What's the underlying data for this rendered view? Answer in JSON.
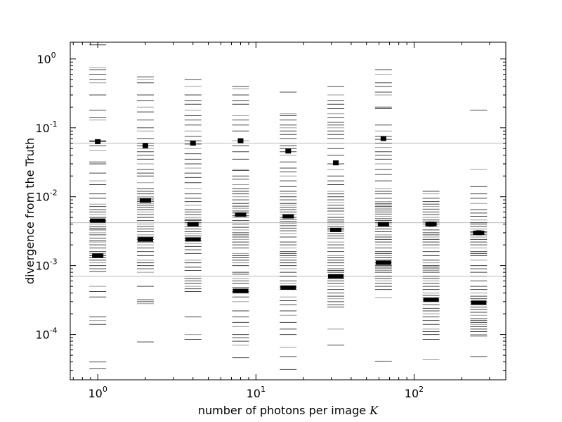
{
  "chart_data": {
    "type": "scatter",
    "title": "",
    "xlabel": "number of photons per image",
    "xlabel_symbol": "K",
    "ylabel": "divergence from the Truth",
    "xscale": "log",
    "yscale": "log",
    "xlim": [
      0.67,
      380
    ],
    "ylim": [
      2.2e-05,
      1.75
    ],
    "x_ticks": [
      {
        "value": 1,
        "base": "10",
        "exp": "0"
      },
      {
        "value": 10,
        "base": "10",
        "exp": "1"
      },
      {
        "value": 100,
        "base": "10",
        "exp": "2"
      }
    ],
    "y_ticks": [
      {
        "value": 1,
        "base": "10",
        "exp": "0"
      },
      {
        "value": 0.1,
        "base": "10",
        "exp": "-1"
      },
      {
        "value": 0.01,
        "base": "10",
        "exp": "-2"
      },
      {
        "value": 0.001,
        "base": "10",
        "exp": "-3"
      },
      {
        "value": 0.0001,
        "base": "10",
        "exp": "-4"
      }
    ],
    "reference_lines": [
      0.06,
      0.0042,
      0.0007
    ],
    "reference_line_color": "#bbbbbb",
    "marker_color": "#000000",
    "series": [
      {
        "x": 1,
        "values": [
          1.6,
          0.75,
          0.7,
          0.6,
          0.5,
          0.45,
          0.3,
          0.18,
          0.14,
          0.13,
          0.065,
          0.063,
          0.055,
          0.047,
          0.032,
          0.03,
          0.022,
          0.017,
          0.015,
          0.011,
          0.0095,
          0.0078,
          0.0072,
          0.0065,
          0.006,
          0.0055,
          0.005,
          0.0045,
          0.0043,
          0.004,
          0.0037,
          0.0035,
          0.0033,
          0.003,
          0.0028,
          0.0025,
          0.0023,
          0.0022,
          0.002,
          0.0018,
          0.0016,
          0.0015,
          0.0014,
          0.0013,
          0.0012,
          0.0011,
          0.001,
          0.0009,
          0.00082,
          0.0005,
          0.00042,
          0.00035,
          0.00018,
          0.00016,
          0.00014,
          4e-05,
          3.2e-05
        ],
        "median": 0.0045,
        "lower": 0.0014,
        "upper": 0.063
      },
      {
        "x": 2,
        "values": [
          0.55,
          0.5,
          0.45,
          0.3,
          0.25,
          0.2,
          0.17,
          0.13,
          0.1,
          0.09,
          0.07,
          0.06,
          0.055,
          0.05,
          0.045,
          0.04,
          0.035,
          0.03,
          0.025,
          0.022,
          0.02,
          0.016,
          0.013,
          0.012,
          0.011,
          0.01,
          0.0095,
          0.009,
          0.0085,
          0.008,
          0.0075,
          0.007,
          0.0065,
          0.006,
          0.0055,
          0.005,
          0.0045,
          0.004,
          0.0037,
          0.0034,
          0.0031,
          0.0028,
          0.0026,
          0.0024,
          0.0022,
          0.002,
          0.0018,
          0.0016,
          0.0014,
          0.0012,
          0.0011,
          0.001,
          0.0009,
          0.0008,
          0.0005,
          0.00032,
          0.0003,
          0.00028,
          7.8e-05
        ],
        "median": 0.0024,
        "lower": 0.0088,
        "upper": 0.055
      },
      {
        "x": 4,
        "values": [
          0.5,
          0.4,
          0.3,
          0.25,
          0.22,
          0.18,
          0.15,
          0.13,
          0.11,
          0.09,
          0.075,
          0.065,
          0.058,
          0.05,
          0.042,
          0.035,
          0.03,
          0.026,
          0.022,
          0.019,
          0.016,
          0.013,
          0.011,
          0.0095,
          0.0085,
          0.0075,
          0.0065,
          0.006,
          0.0055,
          0.005,
          0.0047,
          0.0045,
          0.0042,
          0.004,
          0.0037,
          0.0034,
          0.0031,
          0.0029,
          0.0027,
          0.0025,
          0.0023,
          0.0021,
          0.0019,
          0.0017,
          0.0015,
          0.0012,
          0.0011,
          0.00095,
          0.00085,
          0.0007,
          0.00065,
          0.0006,
          0.00055,
          0.0005,
          0.00046,
          0.00042,
          0.00018,
          0.0001,
          8.5e-05
        ],
        "median": 0.0024,
        "lower": 0.004,
        "upper": 0.06
      },
      {
        "x": 8,
        "values": [
          0.4,
          0.37,
          0.3,
          0.25,
          0.22,
          0.15,
          0.13,
          0.11,
          0.09,
          0.065,
          0.055,
          0.045,
          0.035,
          0.025,
          0.024,
          0.02,
          0.018,
          0.015,
          0.013,
          0.012,
          0.011,
          0.01,
          0.009,
          0.008,
          0.0073,
          0.0068,
          0.0062,
          0.0058,
          0.0053,
          0.005,
          0.0045,
          0.004,
          0.0036,
          0.0033,
          0.003,
          0.0028,
          0.0026,
          0.0024,
          0.0022,
          0.002,
          0.0018,
          0.0015,
          0.0014,
          0.0013,
          0.0012,
          0.0011,
          0.001,
          0.0008,
          0.00075,
          0.00065,
          0.0006,
          0.00055,
          0.00048,
          0.00045,
          0.00042,
          0.0004,
          0.00035,
          0.0003,
          0.00022,
          0.00018,
          0.00015,
          0.00013,
          0.0001,
          9e-05,
          8e-05,
          7e-05,
          4.6e-05
        ],
        "median": 0.00043,
        "lower": 0.0055,
        "upper": 0.065
      },
      {
        "x": 16,
        "values": [
          0.33,
          0.16,
          0.15,
          0.13,
          0.11,
          0.1,
          0.09,
          0.08,
          0.07,
          0.06,
          0.055,
          0.05,
          0.045,
          0.04,
          0.032,
          0.026,
          0.023,
          0.02,
          0.017,
          0.014,
          0.012,
          0.011,
          0.01,
          0.009,
          0.008,
          0.0075,
          0.007,
          0.0065,
          0.006,
          0.0055,
          0.005,
          0.0047,
          0.0044,
          0.0041,
          0.0038,
          0.0035,
          0.0032,
          0.0029,
          0.0026,
          0.0022,
          0.002,
          0.0018,
          0.0016,
          0.0015,
          0.0014,
          0.0013,
          0.0012,
          0.0011,
          0.001,
          0.0009,
          0.0008,
          0.0007,
          0.0006,
          0.00055,
          0.0005,
          0.00048,
          0.00045,
          0.00035,
          0.00031,
          0.00027,
          0.00022,
          0.00019,
          0.00015,
          0.00012,
          0.0001,
          6.5e-05,
          4.8e-05,
          3.1e-05
        ],
        "median": 0.00048,
        "lower": 0.0052,
        "upper": 0.046
      },
      {
        "x": 32,
        "values": [
          0.4,
          0.3,
          0.25,
          0.22,
          0.19,
          0.16,
          0.14,
          0.12,
          0.11,
          0.1,
          0.09,
          0.08,
          0.07,
          0.06,
          0.05,
          0.04,
          0.03,
          0.025,
          0.02,
          0.017,
          0.015,
          0.012,
          0.011,
          0.01,
          0.009,
          0.0082,
          0.0075,
          0.0068,
          0.0062,
          0.0056,
          0.005,
          0.0046,
          0.0043,
          0.004,
          0.0037,
          0.0035,
          0.0033,
          0.0031,
          0.0029,
          0.0027,
          0.0025,
          0.0022,
          0.002,
          0.0018,
          0.0016,
          0.0014,
          0.0013,
          0.0012,
          0.0011,
          0.001,
          0.0009,
          0.00085,
          0.0008,
          0.00072,
          0.00065,
          0.0006,
          0.00055,
          0.0005,
          0.00045,
          0.0004,
          0.00036,
          0.00033,
          0.0003,
          0.00027,
          0.00025,
          0.00012,
          7e-05
        ],
        "median": 0.0007,
        "lower": 0.0033,
        "upper": 0.031
      },
      {
        "x": 64,
        "values": [
          0.7,
          0.6,
          0.45,
          0.4,
          0.33,
          0.3,
          0.2,
          0.19,
          0.11,
          0.09,
          0.075,
          0.068,
          0.06,
          0.052,
          0.045,
          0.04,
          0.035,
          0.03,
          0.025,
          0.021,
          0.017,
          0.013,
          0.012,
          0.011,
          0.0095,
          0.0085,
          0.008,
          0.0076,
          0.0072,
          0.0068,
          0.0064,
          0.006,
          0.0056,
          0.0052,
          0.0048,
          0.0045,
          0.0042,
          0.004,
          0.0037,
          0.0034,
          0.0031,
          0.0028,
          0.0026,
          0.0024,
          0.0022,
          0.002,
          0.0018,
          0.0016,
          0.0015,
          0.0014,
          0.0013,
          0.0012,
          0.0011,
          0.00105,
          0.001,
          0.00095,
          0.0009,
          0.00085,
          0.0008,
          0.0007,
          0.00065,
          0.0006,
          0.00055,
          0.0005,
          0.00045,
          0.00034,
          4.1e-05
        ],
        "median": 0.0011,
        "lower": 0.004,
        "upper": 0.07
      },
      {
        "x": 128,
        "values": [
          0.012,
          0.011,
          0.0095,
          0.0085,
          0.0078,
          0.0072,
          0.0066,
          0.006,
          0.0055,
          0.005,
          0.0046,
          0.0043,
          0.004,
          0.0037,
          0.0033,
          0.003,
          0.0028,
          0.0026,
          0.0024,
          0.0022,
          0.002,
          0.0018,
          0.0016,
          0.0014,
          0.0012,
          0.0011,
          0.001,
          0.00095,
          0.0009,
          0.00085,
          0.0008,
          0.0007,
          0.00065,
          0.0006,
          0.00055,
          0.0005,
          0.00045,
          0.0004,
          0.00037,
          0.00034,
          0.00032,
          0.0003,
          0.00027,
          0.00024,
          0.00022,
          0.0002,
          0.00018,
          0.00016,
          0.00014,
          0.00012,
          0.00011,
          0.0001,
          8.5e-05,
          4.3e-05
        ],
        "median": 0.00032,
        "lower": 0.004,
        "upper": 0.004
      },
      {
        "x": 256,
        "values": [
          0.18,
          0.025,
          0.014,
          0.011,
          0.0095,
          0.008,
          0.0065,
          0.0058,
          0.0052,
          0.0046,
          0.0042,
          0.004,
          0.0037,
          0.0034,
          0.0031,
          0.003,
          0.0028,
          0.0026,
          0.0024,
          0.0022,
          0.002,
          0.0018,
          0.0016,
          0.0015,
          0.0014,
          0.0012,
          0.001,
          0.0009,
          0.0008,
          0.0007,
          0.0006,
          0.0005,
          0.00045,
          0.0004,
          0.00036,
          0.00033,
          0.0003,
          0.00027,
          0.00025,
          0.00023,
          0.00021,
          0.00019,
          0.00017,
          0.00016,
          0.00015,
          0.00014,
          0.00013,
          0.00012,
          0.00011,
          0.0001,
          9.5e-05,
          4.8e-05
        ],
        "median": 0.00029,
        "lower": 0.003,
        "upper": 0.003
      }
    ]
  }
}
